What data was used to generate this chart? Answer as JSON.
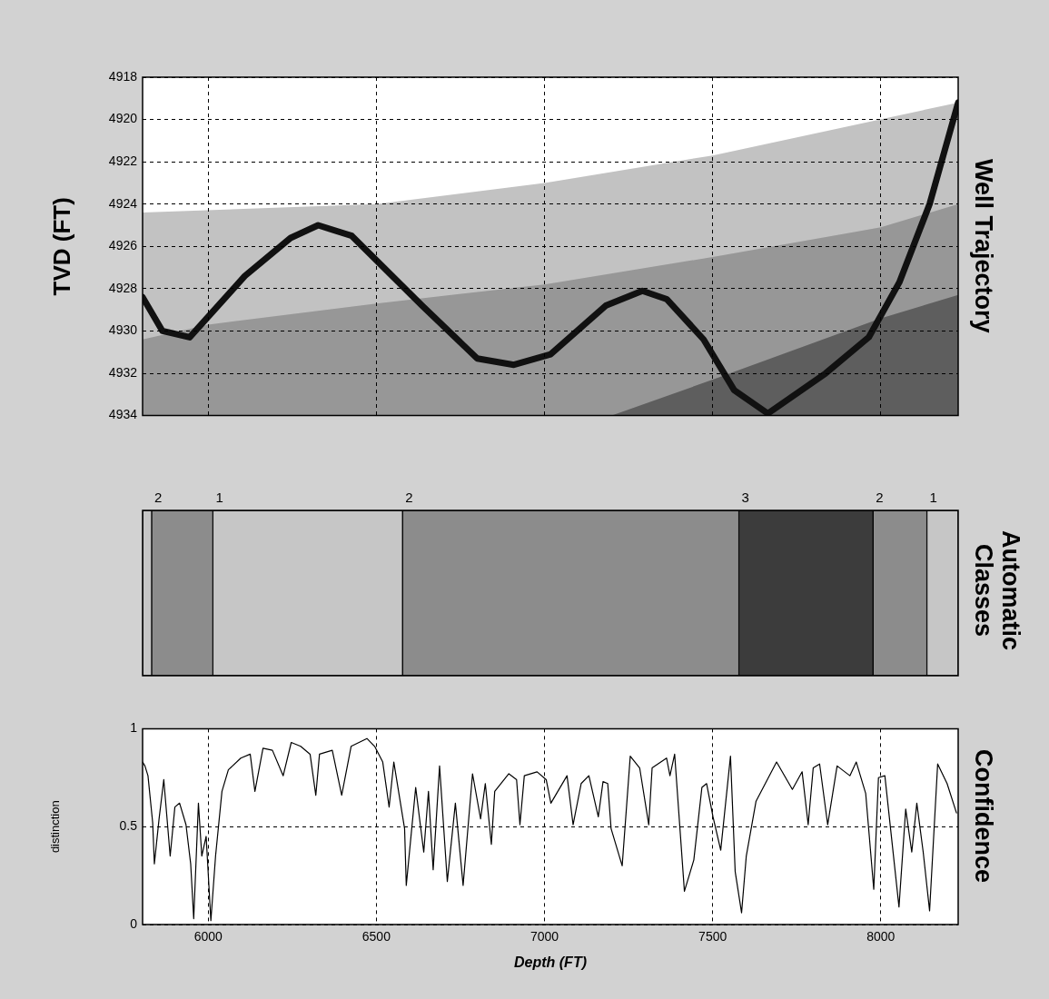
{
  "chart_data": [
    {
      "type": "line",
      "title": "Well Trajectory",
      "ylabel": "TVD (FT)",
      "xlim": [
        5805,
        8230
      ],
      "xticks": [
        6000,
        6500,
        7000,
        7500,
        8000
      ],
      "ylim": [
        4934,
        4918
      ],
      "yticks": [
        4918,
        4920,
        4922,
        4924,
        4926,
        4928,
        4930,
        4932,
        4934
      ],
      "grid": true,
      "tick_labels": "y",
      "series": [
        {
          "type": "area",
          "color": "#c2c2c2",
          "x": [
            5805,
            5805,
            6500,
            7000,
            7500,
            8230,
            8230
          ],
          "values": [
            4934,
            4924.4,
            4924.0,
            4923.0,
            4921.7,
            4919.2,
            4934
          ]
        },
        {
          "type": "area",
          "color": "#979797",
          "x": [
            5805,
            5805,
            6000,
            6500,
            7000,
            7500,
            8000,
            8230,
            8230
          ],
          "values": [
            4934,
            4930.4,
            4929.7,
            4928.7,
            4927.8,
            4926.5,
            4925.1,
            4924.0,
            4934
          ]
        },
        {
          "type": "area",
          "color": "#5e5e5e",
          "x": [
            7200,
            7500,
            8000,
            8230,
            8230
          ],
          "values": [
            4934,
            4932.3,
            4929.4,
            4928.3,
            4934
          ]
        },
        {
          "type": "line",
          "color": "#111111",
          "x": [
            5805,
            5864,
            5945,
            6109,
            6245,
            6327,
            6427,
            6636,
            6800,
            6909,
            7018,
            7182,
            7291,
            7364,
            7473,
            7564,
            7664,
            7836,
            7964,
            8055,
            8145,
            8230
          ],
          "values": [
            4928.4,
            4930.0,
            4930.3,
            4927.4,
            4925.6,
            4925.0,
            4925.5,
            4928.8,
            4931.3,
            4931.6,
            4931.1,
            4928.8,
            4928.1,
            4928.5,
            4930.4,
            4932.8,
            4933.9,
            4932.0,
            4930.3,
            4927.7,
            4924.0,
            4919.2
          ]
        }
      ]
    },
    {
      "type": "bar",
      "title": "Automatic Classes",
      "orientation": "horizontal",
      "categories": [
        null
      ],
      "xlim": [
        5805,
        8230
      ],
      "tick_labels": false,
      "series": [
        {
          "color": "#c6c6c6",
          "base": [
            5805
          ],
          "values": [
            27
          ]
        },
        {
          "name": "2",
          "color": "#8c8c8c",
          "base": [
            5832
          ],
          "values": [
            182
          ]
        },
        {
          "name": "1",
          "color": "#c6c6c6",
          "base": [
            6014
          ],
          "values": [
            564
          ]
        },
        {
          "name": "2",
          "color": "#8c8c8c",
          "base": [
            6578
          ],
          "values": [
            1000
          ]
        },
        {
          "name": "3",
          "color": "#3c3c3c",
          "base": [
            7578
          ],
          "values": [
            399
          ]
        },
        {
          "name": "2",
          "color": "#8c8c8c",
          "base": [
            7977
          ],
          "values": [
            160
          ]
        },
        {
          "name": "1",
          "color": "#c6c6c6",
          "base": [
            8137
          ],
          "values": [
            93
          ]
        }
      ]
    },
    {
      "type": "line",
      "title": "Confidence",
      "xlabel": "Depth (FT)",
      "ylabel": "distinction",
      "xlim": [
        5805,
        8230
      ],
      "xticks": [
        6000,
        6500,
        7000,
        7500,
        8000
      ],
      "ylim": [
        0,
        1
      ],
      "yticks": [
        0,
        0.5,
        1
      ],
      "grid": true,
      "color": "#000000",
      "x": [
        5805,
        5812,
        5821,
        5835,
        5840,
        5854,
        5868,
        5887,
        5901,
        5915,
        5934,
        5948,
        5957,
        5971,
        5981,
        5994,
        6008,
        6022,
        6041,
        6060,
        6097,
        6125,
        6139,
        6163,
        6191,
        6223,
        6247,
        6275,
        6303,
        6320,
        6331,
        6369,
        6397,
        6425,
        6472,
        6495,
        6519,
        6538,
        6552,
        6584,
        6589,
        6617,
        6641,
        6655,
        6669,
        6688,
        6711,
        6735,
        6758,
        6786,
        6810,
        6824,
        6842,
        6852,
        6894,
        6917,
        6927,
        6940,
        6978,
        7005,
        7019,
        7067,
        7085,
        7109,
        7132,
        7160,
        7174,
        7188,
        7198,
        7231,
        7255,
        7283,
        7310,
        7320,
        7363,
        7373,
        7387,
        7416,
        7444,
        7468,
        7482,
        7501,
        7524,
        7553,
        7567,
        7586,
        7600,
        7629,
        7690,
        7737,
        7766,
        7784,
        7799,
        7818,
        7842,
        7870,
        7908,
        7927,
        7955,
        7979,
        7993,
        8012,
        8054,
        8074,
        8092,
        8107,
        8126,
        8145,
        8169,
        8197,
        8225
      ],
      "values": [
        0.83,
        0.81,
        0.76,
        0.52,
        0.31,
        0.54,
        0.74,
        0.35,
        0.6,
        0.62,
        0.51,
        0.31,
        0.03,
        0.62,
        0.35,
        0.45,
        0.02,
        0.35,
        0.68,
        0.79,
        0.85,
        0.87,
        0.68,
        0.9,
        0.89,
        0.76,
        0.93,
        0.91,
        0.87,
        0.66,
        0.87,
        0.89,
        0.66,
        0.91,
        0.95,
        0.91,
        0.83,
        0.6,
        0.83,
        0.49,
        0.2,
        0.7,
        0.37,
        0.68,
        0.28,
        0.81,
        0.22,
        0.62,
        0.2,
        0.77,
        0.54,
        0.72,
        0.41,
        0.68,
        0.77,
        0.74,
        0.51,
        0.76,
        0.78,
        0.74,
        0.62,
        0.76,
        0.51,
        0.72,
        0.76,
        0.55,
        0.73,
        0.72,
        0.49,
        0.3,
        0.86,
        0.8,
        0.51,
        0.8,
        0.85,
        0.76,
        0.87,
        0.17,
        0.33,
        0.7,
        0.72,
        0.55,
        0.38,
        0.86,
        0.27,
        0.06,
        0.35,
        0.63,
        0.83,
        0.69,
        0.78,
        0.51,
        0.8,
        0.82,
        0.51,
        0.81,
        0.76,
        0.83,
        0.67,
        0.18,
        0.75,
        0.76,
        0.09,
        0.59,
        0.37,
        0.62,
        0.37,
        0.07,
        0.82,
        0.72,
        0.57
      ]
    }
  ]
}
